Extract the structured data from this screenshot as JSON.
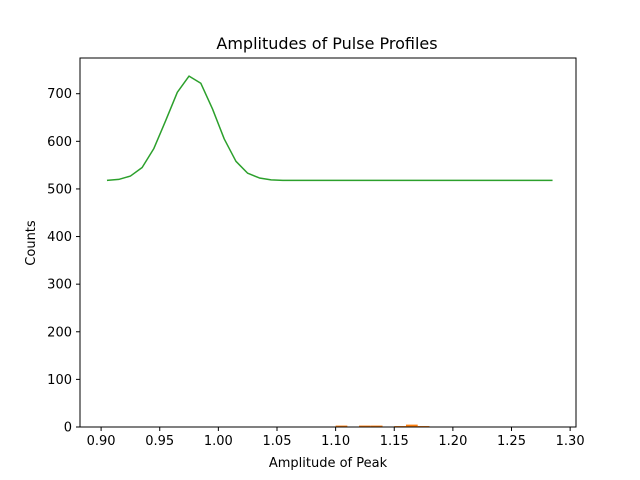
{
  "chart_data": {
    "type": "line",
    "title": "Amplitudes of Pulse Profiles",
    "xlabel": "Amplitude of Peak",
    "ylabel": "Counts",
    "xlim": [
      0.882,
      1.305
    ],
    "ylim": [
      0,
      775
    ],
    "xticks": [
      0.9,
      0.95,
      1.0,
      1.05,
      1.1,
      1.15,
      1.2,
      1.25,
      1.3
    ],
    "xtick_labels": [
      "0.90",
      "0.95",
      "1.00",
      "1.05",
      "1.10",
      "1.15",
      "1.20",
      "1.25",
      "1.30"
    ],
    "yticks": [
      0,
      100,
      200,
      300,
      400,
      500,
      600,
      700
    ],
    "ytick_labels": [
      "0",
      "100",
      "200",
      "300",
      "400",
      "500",
      "600",
      "700"
    ],
    "grid": false,
    "legend": "none",
    "series": [
      {
        "type": "line",
        "color": "#2ca02c",
        "x": [
          0.905,
          0.915,
          0.925,
          0.935,
          0.945,
          0.955,
          0.965,
          0.975,
          0.985,
          0.995,
          1.005,
          1.015,
          1.025,
          1.035,
          1.045,
          1.055,
          1.065,
          1.075,
          1.1,
          1.15,
          1.2,
          1.25,
          1.285
        ],
        "y": [
          518,
          520,
          527,
          545,
          585,
          643,
          703,
          737,
          722,
          668,
          605,
          558,
          533,
          523,
          519,
          518,
          518,
          518,
          518,
          518,
          518,
          518,
          518
        ]
      },
      {
        "type": "bar",
        "color": "#ff7f0e",
        "x": [
          1.075,
          1.085,
          1.095,
          1.105,
          1.115,
          1.125,
          1.135,
          1.145,
          1.155,
          1.165,
          1.175,
          1.185,
          1.195
        ],
        "width": 0.01,
        "y": [
          1,
          1,
          1,
          3,
          1,
          3,
          3,
          1,
          2,
          5,
          2,
          0,
          1
        ]
      }
    ]
  }
}
